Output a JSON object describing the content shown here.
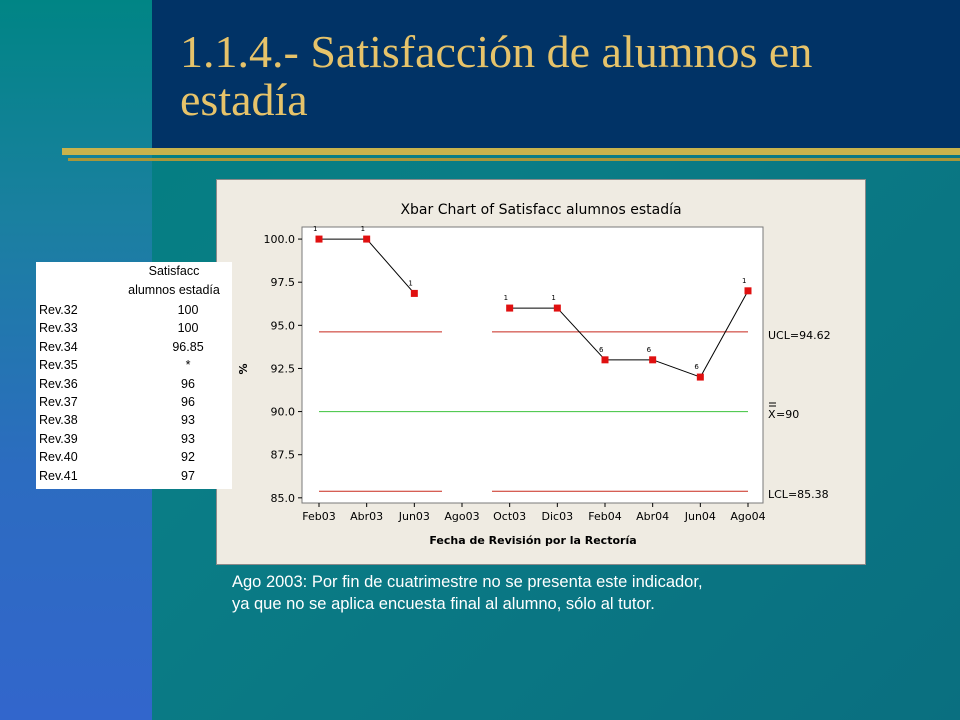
{
  "slide_title": "1.1.4.- Satisfacción de alumnos en estadía",
  "data_table": {
    "header_line1": "Satisfacc",
    "header_line2": "alumnos estadía",
    "rows": [
      {
        "label": "Rev.32",
        "value": "100"
      },
      {
        "label": "Rev.33",
        "value": "100"
      },
      {
        "label": "Rev.34",
        "value": "96.85"
      },
      {
        "label": "Rev.35",
        "value": "*"
      },
      {
        "label": "Rev.36",
        "value": "96"
      },
      {
        "label": "Rev.37",
        "value": "96"
      },
      {
        "label": "Rev.38",
        "value": "93"
      },
      {
        "label": "Rev.39",
        "value": "93"
      },
      {
        "label": "Rev.40",
        "value": "92"
      },
      {
        "label": "Rev.41",
        "value": "97"
      }
    ]
  },
  "note": {
    "line1": "Ago 2003: Por fin de cuatrimestre no se presenta este indicador,",
    "line2": "ya que no se aplica encuesta final al alumno, sólo al tutor."
  },
  "colors": {
    "point": "#e01010",
    "limit_line": "#c8281c",
    "center_line": "#3cc33c",
    "title_text": "#e6c36a"
  },
  "chart_data": {
    "type": "line",
    "title": "Xbar Chart of Satisfacc alumnos estadía",
    "xlabel": "Fecha de Revisión por la Rectoría",
    "ylabel": "%",
    "categories": [
      "Feb03",
      "Abr03",
      "Jun03",
      "Ago03",
      "Oct03",
      "Dic03",
      "Feb04",
      "Abr04",
      "Jun04",
      "Ago04"
    ],
    "ylim": [
      84.7,
      100.7
    ],
    "yticks": [
      "85.0",
      "87.5",
      "90.0",
      "92.5",
      "95.0",
      "97.5",
      "100.0"
    ],
    "series": [
      {
        "values": [
          100,
          100,
          96.85,
          null,
          96,
          96,
          93,
          93,
          92,
          97
        ],
        "flags": [
          "1",
          "1",
          "1",
          "",
          "1",
          "1",
          "6",
          "6",
          "6",
          "1"
        ]
      }
    ],
    "ucl": 94.62,
    "center": 90,
    "lcl": 85.38,
    "ucl_label": "UCL=94.62",
    "center_label": "=90",
    "center_symbol": "X",
    "lcl_label": "LCL=85.38"
  }
}
